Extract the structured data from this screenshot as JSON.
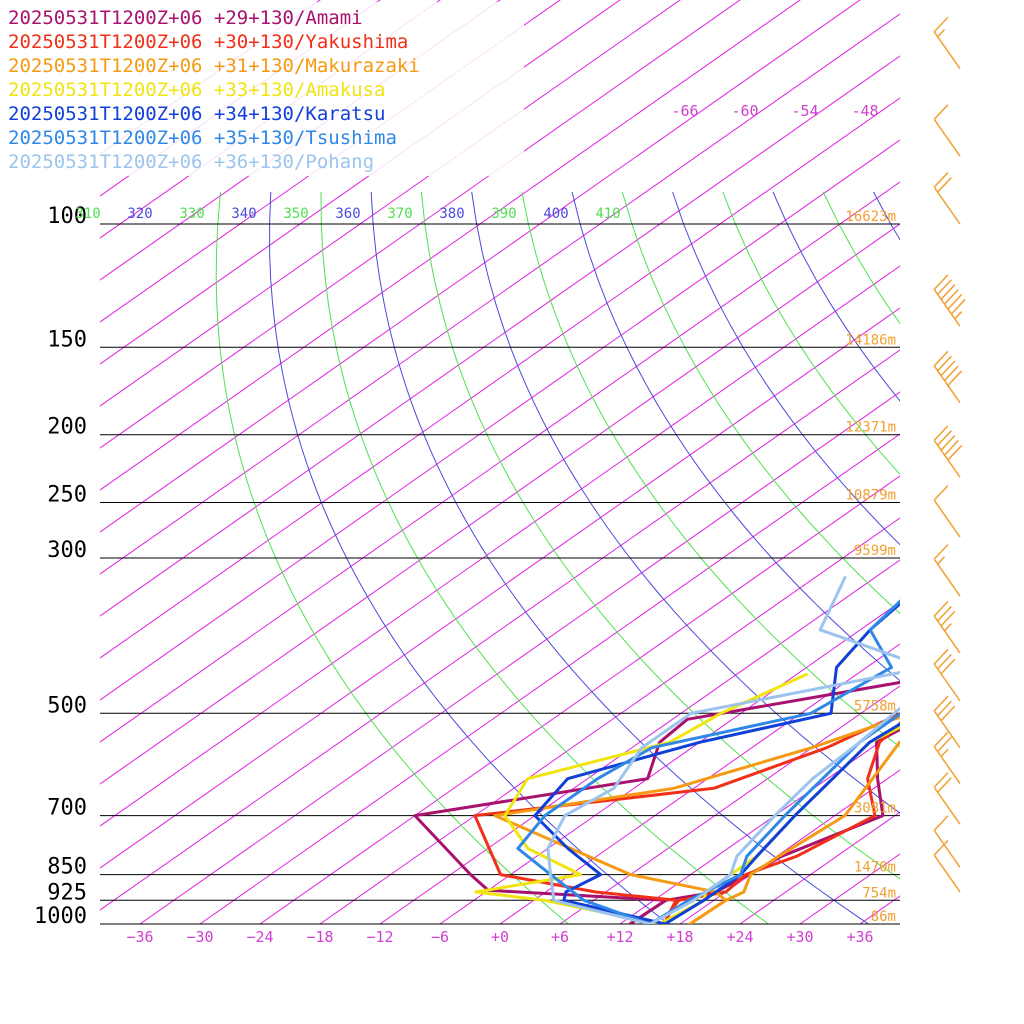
{
  "chart_data": {
    "type": "line",
    "chart_kind": "skew-T log-P sounding",
    "pressure_levels": [
      100,
      150,
      200,
      250,
      300,
      500,
      700,
      850,
      925,
      1000
    ],
    "pressure_labels": [
      "100",
      "150",
      "200",
      "250",
      "300",
      "500",
      "700",
      "850",
      "925",
      "1000"
    ],
    "height_labels": [
      {
        "p": 100,
        "text": "16623m"
      },
      {
        "p": 150,
        "text": "14186m"
      },
      {
        "p": 200,
        "text": "12371m"
      },
      {
        "p": 250,
        "text": "10879m"
      },
      {
        "p": 300,
        "text": "9599m"
      },
      {
        "p": 500,
        "text": "5758m"
      },
      {
        "p": 700,
        "text": "3081m"
      },
      {
        "p": 850,
        "text": "1470m"
      },
      {
        "p": 925,
        "text": "754m"
      },
      {
        "p": 1000,
        "text": "86m"
      }
    ],
    "temperature_ticks": [
      -36,
      -30,
      -24,
      -18,
      -12,
      -6,
      0,
      6,
      12,
      18,
      24,
      30,
      36
    ],
    "temperature_tick_labels": [
      "−36",
      "−30",
      "−24",
      "−18",
      "−12",
      "−6",
      "+0",
      "+6",
      "+12",
      "+18",
      "+24",
      "+30",
      "+36"
    ],
    "upper_isotherm_labels": [
      "-66",
      "-60",
      "-54",
      "-48"
    ],
    "theta_labels": [
      "310",
      "320",
      "330",
      "340",
      "350",
      "360",
      "370",
      "380",
      "390",
      "400",
      "410"
    ],
    "xlim": [
      -40,
      40
    ],
    "pressure_range": [
      100,
      1000
    ],
    "skew_per_decade": 100,
    "colors": {
      "isotherm": "#e020e0",
      "isobar": "#000000",
      "theta_dry": "#4a4adb",
      "theta_moist": "#50e050",
      "height_label": "#f0a030",
      "tick_label": "#d040d0",
      "wind_barb": "#f0a030"
    },
    "series": [
      {
        "name": "20250531T1200Z+06 +29+130/Amami",
        "color": "#a8126e",
        "points": [
          [
            1000,
            13
          ],
          [
            925,
            13.2
          ],
          [
            900,
            17
          ],
          [
            850,
            17.8
          ],
          [
            800,
            18.5
          ],
          [
            700,
            22.8
          ],
          [
            620,
            17
          ],
          [
            550,
            11.7
          ],
          [
            500,
            12.8
          ],
          [
            430,
            12.7
          ],
          [
            360,
            9
          ],
          [
            300,
            5.5
          ],
          [
            240,
            0.5
          ],
          [
            200,
            -4
          ],
          [
            175,
            -8
          ],
          [
            160,
            -7.7
          ],
          [
            140,
            -8
          ],
          [
            130,
            -8.5
          ],
          [
            115,
            -5
          ],
          [
            100,
            -2
          ],
          [
            70,
            -1
          ],
          [
            50,
            2
          ],
          [
            30,
            12
          ],
          [
            22,
            20
          ]
        ]
      },
      {
        "name": "20250531T1200Z+06 +29+130/Amami (dewpoint)",
        "dewpoint": true,
        "color": "#a8126e",
        "points": [
          [
            1000,
            13
          ],
          [
            925,
            13.2
          ],
          [
            895,
            -6
          ],
          [
            850,
            -10
          ],
          [
            700,
            -24
          ],
          [
            620,
            -6
          ],
          [
            550,
            -10
          ],
          [
            510,
            -10.5
          ],
          [
            440,
            9
          ]
        ]
      },
      {
        "name": "20250531T1200Z+06 +30+130/Yakushima",
        "color": "#f03018",
        "points": [
          [
            1000,
            16.4
          ],
          [
            950,
            15
          ],
          [
            925,
            14.5
          ],
          [
            900,
            18
          ],
          [
            850,
            17.5
          ],
          [
            800,
            20
          ],
          [
            700,
            22
          ],
          [
            620,
            16
          ],
          [
            550,
            12
          ],
          [
            500,
            11
          ],
          [
            430,
            12
          ],
          [
            360,
            9
          ],
          [
            300,
            6
          ],
          [
            240,
            0.5
          ],
          [
            200,
            -4.5
          ],
          [
            175,
            -7.5
          ],
          [
            160,
            -8.5
          ],
          [
            140,
            -9
          ],
          [
            130,
            -8.5
          ],
          [
            115,
            -5
          ],
          [
            100,
            -2.5
          ],
          [
            70,
            0
          ],
          [
            50,
            3
          ],
          [
            30,
            13
          ],
          [
            22,
            21
          ]
        ]
      },
      {
        "name": "20250531T1200Z+06 +30+130/Yakushima (dewpoint)",
        "dewpoint": true,
        "color": "#f03018",
        "points": [
          [
            1000,
            16.4
          ],
          [
            925,
            14.2
          ],
          [
            900,
            5
          ],
          [
            850,
            -7
          ],
          [
            700,
            -18
          ],
          [
            640,
            2
          ],
          [
            560,
            7.5
          ],
          [
            500,
            10
          ]
        ]
      },
      {
        "name": "20250531T1200Z+06 +31+130/Makurazaki",
        "color": "#f59a12",
        "points": [
          [
            1000,
            19
          ],
          [
            925,
            19.2
          ],
          [
            900,
            19.8
          ],
          [
            850,
            18
          ],
          [
            800,
            18.2
          ],
          [
            700,
            19
          ],
          [
            620,
            16.5
          ],
          [
            550,
            14
          ],
          [
            500,
            14.5
          ],
          [
            430,
            11
          ],
          [
            360,
            7
          ],
          [
            300,
            6
          ],
          [
            240,
            0.5
          ],
          [
            200,
            -4.5
          ],
          [
            175,
            -7.5
          ],
          [
            160,
            -7.5
          ],
          [
            140,
            -8
          ],
          [
            130,
            -7
          ],
          [
            115,
            -4
          ],
          [
            100,
            -1
          ],
          [
            70,
            1
          ],
          [
            50,
            6
          ],
          [
            30,
            15
          ],
          [
            22,
            24
          ]
        ]
      },
      {
        "name": "20250531T1200Z+06 +31+130/Makurazaki (dewpoint)",
        "dewpoint": true,
        "color": "#f59a12",
        "points": [
          [
            1000,
            19
          ],
          [
            925,
            19.2
          ],
          [
            900,
            17
          ],
          [
            850,
            6
          ],
          [
            700,
            -16
          ],
          [
            640,
            -2
          ],
          [
            560,
            6
          ],
          [
            500,
            11
          ]
        ]
      },
      {
        "name": "20250531T1200Z+06 +33+130/Amakusa",
        "color": "#f0e510",
        "points": [
          [
            1000,
            16
          ],
          [
            925,
            17
          ],
          [
            900,
            16
          ],
          [
            850,
            16
          ],
          [
            800,
            16
          ],
          [
            700,
            14
          ],
          [
            620,
            12.5
          ],
          [
            550,
            11
          ],
          [
            480,
            13.5
          ],
          [
            420,
            7
          ],
          [
            360,
            4
          ],
          [
            300,
            2
          ],
          [
            240,
            0
          ],
          [
            200,
            -4.5
          ],
          [
            175,
            -6.5
          ],
          [
            160,
            -6.5
          ],
          [
            140,
            -6.5
          ],
          [
            130,
            -5.5
          ],
          [
            115,
            -3.5
          ],
          [
            100,
            -1
          ],
          [
            70,
            3
          ],
          [
            50,
            7
          ],
          [
            30,
            15
          ],
          [
            22,
            23
          ]
        ]
      },
      {
        "name": "20250531T1200Z+06 +33+130/Amakusa (dewpoint)",
        "dewpoint": true,
        "color": "#f0e510",
        "points": [
          [
            1000,
            16
          ],
          [
            925,
            1
          ],
          [
            900,
            -7
          ],
          [
            850,
            1
          ],
          [
            780,
            -8
          ],
          [
            700,
            -15
          ],
          [
            620,
            -18
          ],
          [
            550,
            -9
          ],
          [
            500,
            -8
          ],
          [
            440,
            -5
          ]
        ]
      },
      {
        "name": "20250531T1200Z+06 +34+130/Karatsu",
        "color": "#1040d8",
        "points": [
          [
            1000,
            16.5
          ],
          [
            925,
            17
          ],
          [
            850,
            17
          ],
          [
            800,
            16
          ],
          [
            700,
            14
          ],
          [
            620,
            12.5
          ],
          [
            550,
            11
          ],
          [
            480,
            12
          ],
          [
            420,
            10
          ],
          [
            360,
            7
          ],
          [
            300,
            2.5
          ],
          [
            240,
            0.5
          ],
          [
            200,
            -4.5
          ],
          [
            175,
            -6.5
          ],
          [
            160,
            -6.5
          ],
          [
            140,
            -6
          ],
          [
            130,
            -5
          ],
          [
            115,
            -2
          ],
          [
            100,
            0
          ],
          [
            70,
            4
          ],
          [
            50,
            9
          ],
          [
            30,
            18
          ],
          [
            22,
            25
          ]
        ]
      },
      {
        "name": "20250531T1200Z+06 +34+130/Karatsu (dewpoint)",
        "dewpoint": true,
        "color": "#1040d8",
        "points": [
          [
            1000,
            16.5
          ],
          [
            925,
            3
          ],
          [
            900,
            2
          ],
          [
            850,
            3
          ],
          [
            780,
            -4
          ],
          [
            700,
            -12
          ],
          [
            620,
            -14
          ],
          [
            550,
            -6
          ],
          [
            500,
            3
          ],
          [
            430,
            -3
          ],
          [
            380,
            -5
          ],
          [
            320,
            -6.5
          ]
        ]
      },
      {
        "name": "20250531T1200Z+06 +35+130/Tsushima",
        "color": "#2f88e6",
        "points": [
          [
            1000,
            15
          ],
          [
            925,
            15.5
          ],
          [
            850,
            17
          ],
          [
            800,
            15
          ],
          [
            700,
            13
          ],
          [
            620,
            11.5
          ],
          [
            550,
            10
          ],
          [
            480,
            10
          ],
          [
            420,
            8
          ],
          [
            360,
            4
          ],
          [
            300,
            1.5
          ],
          [
            240,
            -2
          ],
          [
            200,
            -4.5
          ],
          [
            175,
            -6
          ],
          [
            160,
            -6
          ],
          [
            140,
            -6
          ],
          [
            130,
            -3
          ],
          [
            115,
            -0.5
          ],
          [
            100,
            2
          ],
          [
            70,
            5
          ],
          [
            50,
            10
          ],
          [
            30,
            18
          ],
          [
            22,
            26
          ]
        ]
      },
      {
        "name": "20250531T1200Z+06 +35+130/Tsushima (dewpoint)",
        "dewpoint": true,
        "color": "#2f88e6",
        "points": [
          [
            1000,
            15
          ],
          [
            925,
            5
          ],
          [
            850,
            -2
          ],
          [
            780,
            -9
          ],
          [
            700,
            -11
          ],
          [
            620,
            -11
          ],
          [
            560,
            -10
          ],
          [
            500,
            1
          ],
          [
            430,
            2.5
          ],
          [
            380,
            -5
          ],
          [
            320,
            -7
          ]
        ]
      },
      {
        "name": "20250531T1200Z+06 +36+130/Pohang",
        "color": "#9cc4ee",
        "points": [
          [
            1000,
            15
          ],
          [
            925,
            16
          ],
          [
            850,
            16
          ],
          [
            800,
            14
          ],
          [
            700,
            12
          ],
          [
            620,
            10.5
          ],
          [
            550,
            10
          ],
          [
            480,
            9
          ],
          [
            420,
            6
          ],
          [
            360,
            1.5
          ],
          [
            300,
            -2
          ],
          [
            240,
            -4.5
          ],
          [
            200,
            -4.5
          ],
          [
            175,
            -4.5
          ],
          [
            160,
            -3.5
          ],
          [
            140,
            -3
          ],
          [
            130,
            -2
          ],
          [
            115,
            0
          ],
          [
            100,
            3
          ],
          [
            70,
            7
          ],
          [
            50,
            11
          ],
          [
            30,
            19
          ],
          [
            22,
            26
          ]
        ]
      },
      {
        "name": "20250531T1200Z+06 +36+130/Pohang (dewpoint)",
        "dewpoint": true,
        "color": "#9cc4ee",
        "points": [
          [
            1000,
            15
          ],
          [
            925,
            2
          ],
          [
            850,
            -2
          ],
          [
            780,
            -6
          ],
          [
            700,
            -9
          ],
          [
            640,
            -8
          ],
          [
            560,
            -11
          ],
          [
            500,
            -11
          ],
          [
            430,
            6
          ],
          [
            380,
            -10
          ],
          [
            320,
            -15
          ]
        ]
      }
    ],
    "wind_barbs": [
      {
        "p": 60,
        "knots": 15
      },
      {
        "p": 80,
        "knots": 10
      },
      {
        "p": 100,
        "knots": 20
      },
      {
        "p": 140,
        "knots": 65
      },
      {
        "p": 180,
        "knots": 50
      },
      {
        "p": 230,
        "knots": 50
      },
      {
        "p": 280,
        "knots": 10
      },
      {
        "p": 340,
        "knots": 15
      },
      {
        "p": 410,
        "knots": 35
      },
      {
        "p": 480,
        "knots": 30
      },
      {
        "p": 560,
        "knots": 30
      },
      {
        "p": 630,
        "knots": 25
      },
      {
        "p": 720,
        "knots": 20
      },
      {
        "p": 830,
        "knots": 10
      },
      {
        "p": 900,
        "knots": 10
      }
    ]
  }
}
